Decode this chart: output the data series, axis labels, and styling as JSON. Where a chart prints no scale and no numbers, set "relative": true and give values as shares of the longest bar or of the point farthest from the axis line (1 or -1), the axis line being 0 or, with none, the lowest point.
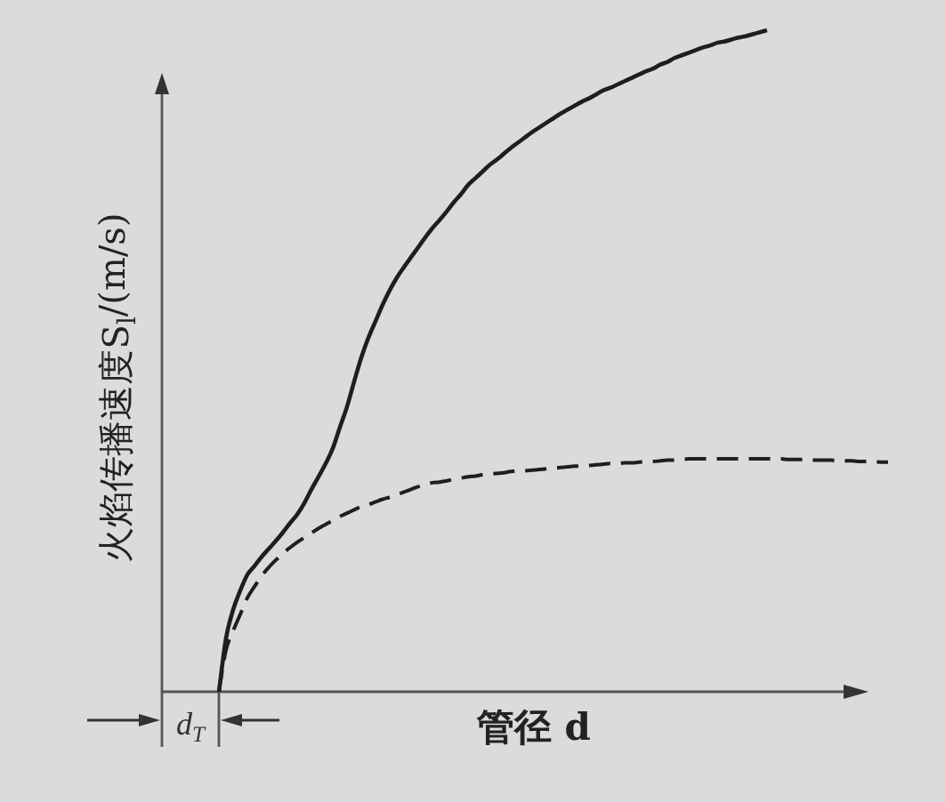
{
  "chart_data": {
    "type": "line",
    "relative": true,
    "xlabel": "管径 d",
    "ylabel": "火焰传播速度S$_{l}$/(m/s)",
    "annotations": [
      "d$_{T}$"
    ],
    "categories": [
      null,
      null,
      null,
      null,
      null,
      null,
      null,
      null,
      null,
      null,
      null,
      null,
      null,
      null,
      null,
      null,
      null,
      null,
      null,
      null,
      null,
      null,
      null,
      null,
      null,
      null,
      null,
      null,
      null,
      null,
      null,
      null,
      null,
      null,
      null,
      null,
      null,
      null,
      null,
      null,
      null,
      null,
      null,
      null,
      null,
      null,
      null,
      null,
      null,
      null,
      null,
      null,
      null,
      null,
      null,
      null,
      null,
      null,
      null,
      null,
      null,
      null,
      null,
      null,
      null,
      null,
      null,
      null,
      null,
      null,
      null,
      null,
      null,
      null,
      null,
      null,
      null,
      null,
      null,
      null,
      null,
      null,
      null,
      null,
      null,
      null,
      null,
      null,
      null,
      null,
      null,
      null,
      null,
      null,
      null,
      null,
      null,
      null,
      null,
      null,
      null,
      null,
      null
    ],
    "series": [
      {
        "color": "#1e1e1e",
        "line_style": "solid",
        "values": [
          null,
          null,
          null,
          null,
          null,
          null,
          null,
          null,
          0,
          0.081,
          0.124,
          0.153,
          0.177,
          0.19,
          0.204,
          0.216,
          0.228,
          0.241,
          0.255,
          0.268,
          0.285,
          0.306,
          0.325,
          0.345,
          0.368,
          0.4,
          0.431,
          0.469,
          0.505,
          0.535,
          0.56,
          0.585,
          0.607,
          0.626,
          0.642,
          0.657,
          0.672,
          0.687,
          0.701,
          0.713,
          0.726,
          0.74,
          0.752,
          0.766,
          0.776,
          0.786,
          0.796,
          0.804,
          0.813,
          0.822,
          0.83,
          0.838,
          0.846,
          0.853,
          0.86,
          0.867,
          0.874,
          0.88,
          0.886,
          0.892,
          0.897,
          0.903,
          0.909,
          0.913,
          0.918,
          0.923,
          0.928,
          0.933,
          0.938,
          0.942,
          0.948,
          0.952,
          0.958,
          0.962,
          0.966,
          0.97,
          0.974,
          0.977,
          0.981,
          0.983,
          0.986,
          0.989,
          0.991,
          0.994,
          0.997,
          1,
          null,
          null,
          null,
          null,
          null,
          null,
          null,
          null,
          null,
          null,
          null,
          null,
          null,
          null,
          null,
          null,
          null
        ]
      },
      {
        "color": "#1e1e1e",
        "line_style": "dashed",
        "values": [
          null,
          null,
          null,
          null,
          null,
          null,
          null,
          null,
          0,
          0.063,
          0.092,
          0.117,
          0.142,
          0.159,
          0.175,
          0.188,
          0.199,
          0.209,
          0.218,
          0.226,
          0.233,
          0.24,
          0.247,
          0.253,
          0.259,
          0.265,
          0.27,
          0.275,
          0.28,
          0.283,
          0.287,
          0.291,
          0.294,
          0.298,
          0.302,
          0.306,
          0.31,
          0.313,
          0.316,
          0.317,
          0.319,
          0.321,
          0.323,
          0.325,
          0.326,
          0.328,
          0.329,
          0.33,
          0.331,
          0.333,
          0.334,
          0.334,
          0.335,
          0.336,
          0.337,
          0.338,
          0.339,
          0.34,
          0.341,
          0.341,
          0.342,
          0.343,
          0.344,
          0.345,
          0.345,
          0.346,
          0.346,
          0.347,
          0.348,
          0.348,
          0.349,
          0.35,
          0.35,
          0.351,
          0.352,
          0.352,
          0.352,
          0.352,
          0.352,
          0.352,
          0.352,
          0.352,
          0.352,
          0.352,
          0.352,
          0.352,
          0.352,
          0.352,
          0.351,
          0.351,
          0.351,
          0.35,
          0.35,
          0.35,
          0.35,
          0.349,
          0.349,
          0.349,
          0.348,
          0.348,
          0.348,
          0.347,
          0.347
        ]
      }
    ]
  }
}
